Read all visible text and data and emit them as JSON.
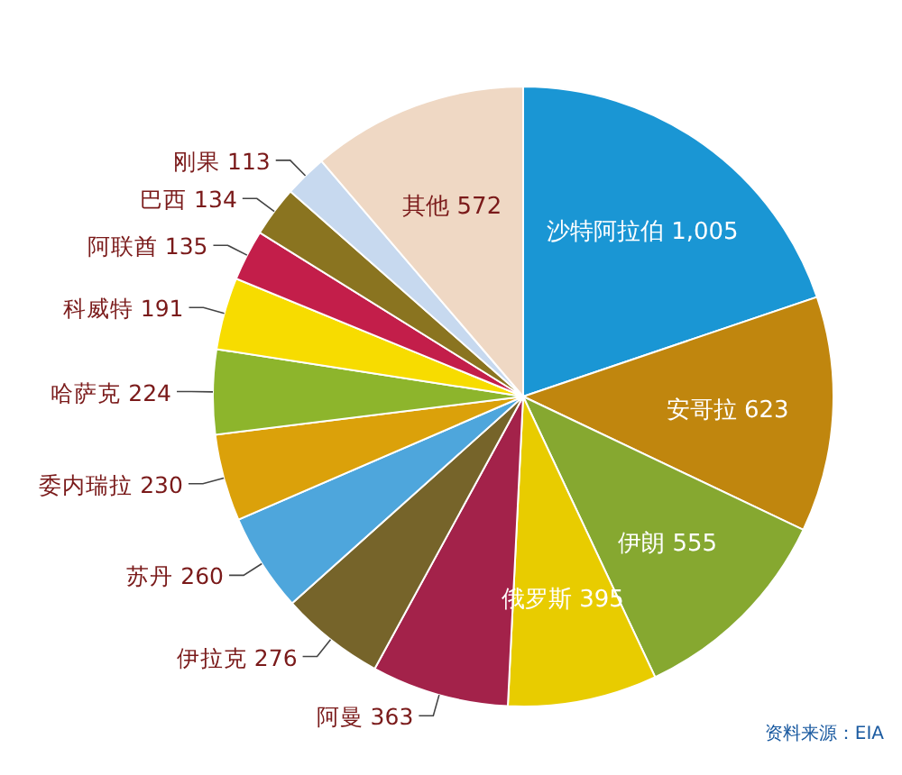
{
  "chart_data": {
    "type": "pie",
    "categories": [
      "沙特阿拉伯",
      "安哥拉",
      "伊朗",
      "俄罗斯",
      "阿曼",
      "伊拉克",
      "苏丹",
      "委内瑞拉",
      "哈萨克",
      "科威特",
      "阿联酋",
      "巴西",
      "刚果",
      "其他"
    ],
    "values": [
      1005,
      623,
      555,
      395,
      363,
      276,
      260,
      230,
      224,
      191,
      135,
      134,
      113,
      572
    ],
    "value_labels": [
      "1,005",
      "623",
      "555",
      "395",
      "363",
      "276",
      "260",
      "230",
      "224",
      "191",
      "135",
      "134",
      "113",
      "572"
    ],
    "colors": [
      "#1a96d4",
      "#c0860e",
      "#86a830",
      "#e8cc00",
      "#a3224a",
      "#76642a",
      "#4ea6dc",
      "#dba10a",
      "#8db52c",
      "#f7dc00",
      "#c31e4a",
      "#8a7420",
      "#c7d9ef",
      "#efd8c4"
    ],
    "annotations": [
      "资料来源：EIA"
    ]
  }
}
